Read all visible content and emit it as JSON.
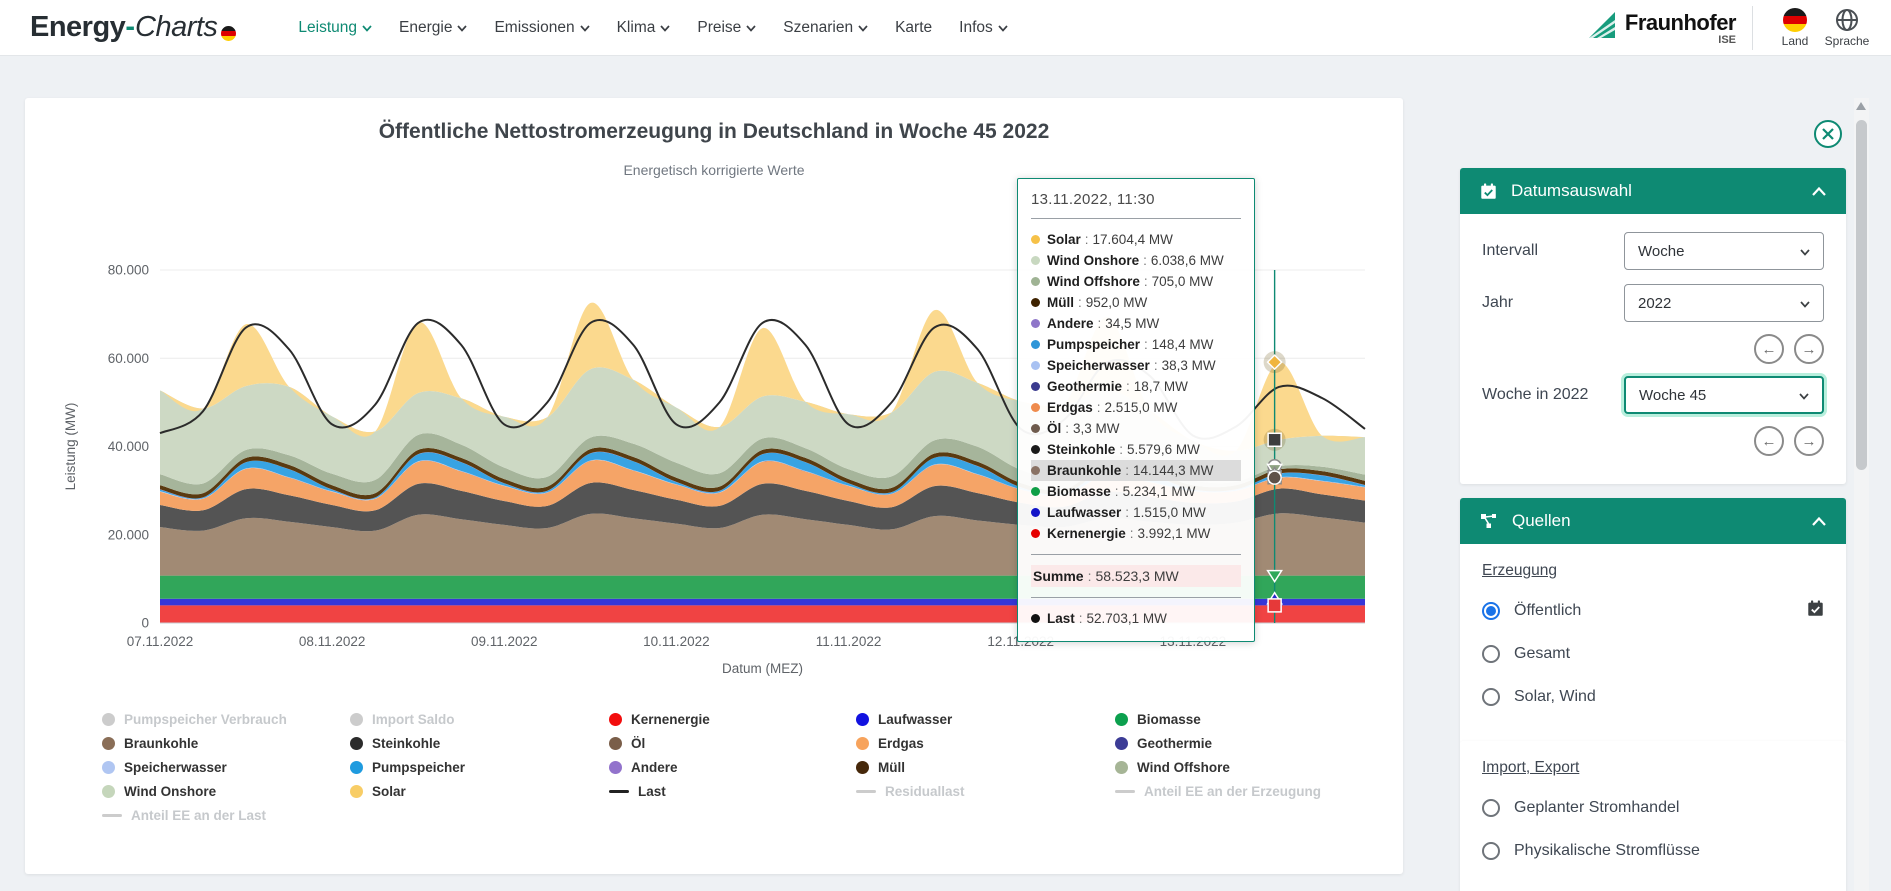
{
  "colors": {
    "accent": "#0e8a73",
    "radio_selected": "#1a73e8",
    "header_bg": "#ffffff",
    "page_bg": "#eef1f4"
  },
  "header": {
    "logo": {
      "part1": "Energy",
      "hyphen": "-",
      "part2": "Charts"
    },
    "nav": [
      {
        "label": "Leistung",
        "chevron": true,
        "active": true
      },
      {
        "label": "Energie",
        "chevron": true,
        "active": false
      },
      {
        "label": "Emissionen",
        "chevron": true,
        "active": false
      },
      {
        "label": "Klima",
        "chevron": true,
        "active": false
      },
      {
        "label": "Preise",
        "chevron": true,
        "active": false
      },
      {
        "label": "Szenarien",
        "chevron": true,
        "active": false
      },
      {
        "label": "Karte",
        "chevron": false,
        "active": false
      },
      {
        "label": "Infos",
        "chevron": true,
        "active": false
      }
    ],
    "fraunhofer": {
      "name": "Fraunhofer",
      "sub": "ISE"
    },
    "land_label": "Land",
    "sprache_label": "Sprache"
  },
  "chart": {
    "title": "Öffentliche Nettostromerzeugung in Deutschland in Woche 45 2022",
    "subtitle": "Energetisch korrigierte Werte",
    "ylabel": "Leistung (MW)",
    "xlabel": "Datum (MEZ)",
    "yticks": [
      "0",
      "20.000",
      "40.000",
      "60.000",
      "80.000"
    ],
    "xticks": [
      "07.11.2022",
      "08.11.2022",
      "09.11.2022",
      "10.11.2022",
      "11.11.2022",
      "12.11.2022",
      "13.11.2022"
    ]
  },
  "chart_data": {
    "type": "area",
    "stacked": true,
    "x_hours": {
      "start": 0,
      "end": 168,
      "step": 6
    },
    "ylim": [
      0,
      80000
    ],
    "grid": true,
    "series": [
      {
        "name": "Kernenergie",
        "color": "#f04343",
        "values": 3990
      },
      {
        "name": "Laufwasser",
        "color": "#3636d8",
        "values": 1515
      },
      {
        "name": "Biomasse",
        "color": "#31a65a",
        "values": 5230
      },
      {
        "name": "Braunkohle",
        "color": "#a18a74",
        "values": [
          11000,
          10200,
          13000,
          12200,
          11000,
          10200,
          13800,
          12800,
          11500,
          10800,
          14000,
          13000,
          11800,
          10800,
          13800,
          12800,
          11500,
          10500,
          13500,
          12500,
          11500,
          11000,
          13000,
          12200,
          11500,
          12000,
          14100,
          13200,
          12000
        ]
      },
      {
        "name": "Steinkohle",
        "color": "#545454",
        "values": [
          5000,
          4600,
          6600,
          6000,
          5000,
          4600,
          7000,
          6400,
          5400,
          5000,
          7000,
          6400,
          5400,
          5000,
          7000,
          6400,
          5400,
          5000,
          6800,
          6200,
          5000,
          4600,
          6000,
          5600,
          5000,
          4800,
          5600,
          5200,
          5000
        ]
      },
      {
        "name": "Öl",
        "color": "#7a6253",
        "values": 3
      },
      {
        "name": "Erdgas",
        "color": "#f5a467",
        "values": [
          3000,
          2600,
          4600,
          4000,
          3000,
          2600,
          5000,
          4400,
          3400,
          3000,
          5000,
          4400,
          3400,
          3000,
          5000,
          4400,
          3400,
          3000,
          4800,
          4200,
          3000,
          2600,
          3800,
          3400,
          2600,
          2400,
          2500,
          3000,
          3000
        ]
      },
      {
        "name": "Geothermie",
        "color": "#3c3c96",
        "values": 19
      },
      {
        "name": "Speicherwasser",
        "color": "#b9cdf2",
        "values": 80
      },
      {
        "name": "Pumpspeicher",
        "color": "#38a3e3",
        "values": [
          400,
          200,
          1400,
          1800,
          400,
          200,
          1600,
          2000,
          500,
          300,
          1600,
          2000,
          500,
          300,
          1600,
          2000,
          500,
          300,
          1500,
          1800,
          400,
          200,
          1200,
          1500,
          300,
          200,
          800,
          1200,
          400
        ]
      },
      {
        "name": "Andere",
        "color": "#9575cd",
        "values": 35
      },
      {
        "name": "Müll",
        "color": "#5a3a10",
        "values": 950
      },
      {
        "name": "Wind Offshore",
        "color": "#a6b59b",
        "values": [
          2500,
          2200,
          1800,
          2200,
          2600,
          3000,
          3400,
          3000,
          2600,
          2200,
          2600,
          3000,
          3400,
          3000,
          2600,
          2200,
          2200,
          2600,
          3000,
          3400,
          3000,
          2600,
          2000,
          1600,
          1100,
          800,
          700,
          1000,
          1400
        ]
      },
      {
        "name": "Wind Onshore",
        "color": "#cdd9c4",
        "values": [
          19000,
          17000,
          14500,
          15500,
          13000,
          11000,
          9500,
          10500,
          11500,
          13500,
          15500,
          14500,
          12500,
          10500,
          9500,
          10500,
          12500,
          14500,
          15500,
          14500,
          15500,
          16500,
          15000,
          12000,
          9000,
          7000,
          6000,
          7000,
          8500
        ]
      },
      {
        "name": "Solar",
        "color": "#fbd98e",
        "values": [
          0,
          0,
          14000,
          0,
          0,
          0,
          16000,
          0,
          0,
          0,
          15000,
          0,
          0,
          0,
          15500,
          0,
          0,
          0,
          14000,
          0,
          0,
          0,
          16500,
          0,
          0,
          0,
          17600,
          0,
          0
        ]
      }
    ],
    "last_line": {
      "name": "Last",
      "color": "#2b2b2b",
      "values": [
        43000,
        48000,
        67000,
        62000,
        45000,
        49500,
        68000,
        63000,
        45000,
        50000,
        68000,
        63000,
        45000,
        50000,
        68000,
        63000,
        45000,
        50000,
        67000,
        62000,
        44000,
        46000,
        59000,
        56000,
        42500,
        44500,
        53500,
        51000,
        44000
      ]
    },
    "hover_index": 25.9
  },
  "tooltip": {
    "datetime": "13.11.2022, 11:30",
    "items": [
      {
        "name": "Solar",
        "value": "17.604,4 MW",
        "color": "#f6c148"
      },
      {
        "name": "Wind Onshore",
        "value": "6.038,6 MW",
        "color": "#c8d8c0"
      },
      {
        "name": "Wind Offshore",
        "value": "705,0 MW",
        "color": "#9fb394"
      },
      {
        "name": "Müll",
        "value": "952,0 MW",
        "color": "#3f2300"
      },
      {
        "name": "Andere",
        "value": "34,5 MW",
        "color": "#8f76c9"
      },
      {
        "name": "Pumpspeicher",
        "value": "148,4 MW",
        "color": "#2f96d8"
      },
      {
        "name": "Speicherwasser",
        "value": "38,3 MW",
        "color": "#a9c2f2"
      },
      {
        "name": "Geothermie",
        "value": "18,7 MW",
        "color": "#3b3b8f"
      },
      {
        "name": "Erdgas",
        "value": "2.515,0 MW",
        "color": "#ef8b4d"
      },
      {
        "name": "Öl",
        "value": "3,3 MW",
        "color": "#6f5b4d"
      },
      {
        "name": "Steinkohle",
        "value": "5.579,6 MW",
        "color": "#1a1a1a"
      },
      {
        "name": "Braunkohle",
        "value": "14.144,3 MW",
        "color": "#8a7264",
        "highlight": true
      },
      {
        "name": "Biomasse",
        "value": "5.234,1 MW",
        "color": "#0f9e46"
      },
      {
        "name": "Laufwasser",
        "value": "1.515,0 MW",
        "color": "#1414c8"
      },
      {
        "name": "Kernenergie",
        "value": "3.992,1 MW",
        "color": "#e60000"
      }
    ],
    "summe_label": "Summe",
    "summe_value": "58.523,3 MW",
    "last": {
      "name": "Last",
      "value": "52.703,1 MW",
      "color": "#111111"
    }
  },
  "legend": {
    "columns": [
      [
        {
          "label": "Pumpspeicher Verbrauch",
          "type": "dot",
          "disabled": true
        },
        {
          "label": "Braunkohle",
          "type": "dot",
          "color": "#8a6e57"
        },
        {
          "label": "Speicherwasser",
          "type": "dot",
          "color": "#b0c6f2"
        },
        {
          "label": "Wind Onshore",
          "type": "dot",
          "color": "#c5d6bb"
        },
        {
          "label": "Anteil EE an der Last",
          "type": "line",
          "disabled": true
        }
      ],
      [
        {
          "label": "Import Saldo",
          "type": "dot",
          "disabled": true
        },
        {
          "label": "Steinkohle",
          "type": "dot",
          "color": "#2b2b2b"
        },
        {
          "label": "Pumpspeicher",
          "type": "dot",
          "color": "#1f9bdf"
        },
        {
          "label": "Solar",
          "type": "dot",
          "color": "#f8cd66"
        }
      ],
      [
        {
          "label": "Kernenergie",
          "type": "dot",
          "color": "#f20d0d"
        },
        {
          "label": "Öl",
          "type": "dot",
          "color": "#7a5e49"
        },
        {
          "label": "Andere",
          "type": "dot",
          "color": "#9273cc"
        },
        {
          "label": "Last",
          "type": "line",
          "color": "#222222"
        }
      ],
      [
        {
          "label": "Laufwasser",
          "type": "dot",
          "color": "#1212e0"
        },
        {
          "label": "Erdgas",
          "type": "dot",
          "color": "#f7a35c"
        },
        {
          "label": "Müll",
          "type": "dot",
          "color": "#46280a"
        },
        {
          "label": "Residuallast",
          "type": "line",
          "disabled": true
        }
      ],
      [
        {
          "label": "Biomasse",
          "type": "dot",
          "color": "#0ca04e"
        },
        {
          "label": "Geothermie",
          "type": "dot",
          "color": "#3c3c96"
        },
        {
          "label": "Wind Offshore",
          "type": "dot",
          "color": "#a6b596"
        },
        {
          "label": "Anteil EE an der Erzeugung",
          "type": "line",
          "disabled": true
        }
      ]
    ]
  },
  "sidebar": {
    "panels": [
      {
        "title": "Datumsauswahl",
        "icon": "calendar-check",
        "fields": [
          {
            "label": "Intervall",
            "value": "Woche",
            "highlight": false,
            "arrows_after": false
          },
          {
            "label": "Jahr",
            "value": "2022",
            "highlight": false,
            "arrows_after": true
          },
          {
            "label": "Woche in 2022",
            "value": "Woche 45",
            "highlight": true,
            "arrows_after": true
          }
        ]
      },
      {
        "title": "Quellen",
        "icon": "share-nodes",
        "sections": [
          {
            "link": "Erzeugung",
            "radios": [
              {
                "label": "Öffentlich",
                "checked": true,
                "calendar_icon": true
              },
              {
                "label": "Gesamt",
                "checked": false,
                "calendar_icon": false
              },
              {
                "label": "Solar, Wind",
                "checked": false,
                "calendar_icon": false
              }
            ]
          },
          {
            "link": "Import, Export",
            "radios": [
              {
                "label": "Geplanter Stromhandel",
                "checked": false,
                "calendar_icon": false
              },
              {
                "label": "Physikalische Stromflüsse",
                "checked": false,
                "calendar_icon": false
              }
            ]
          }
        ]
      }
    ]
  }
}
